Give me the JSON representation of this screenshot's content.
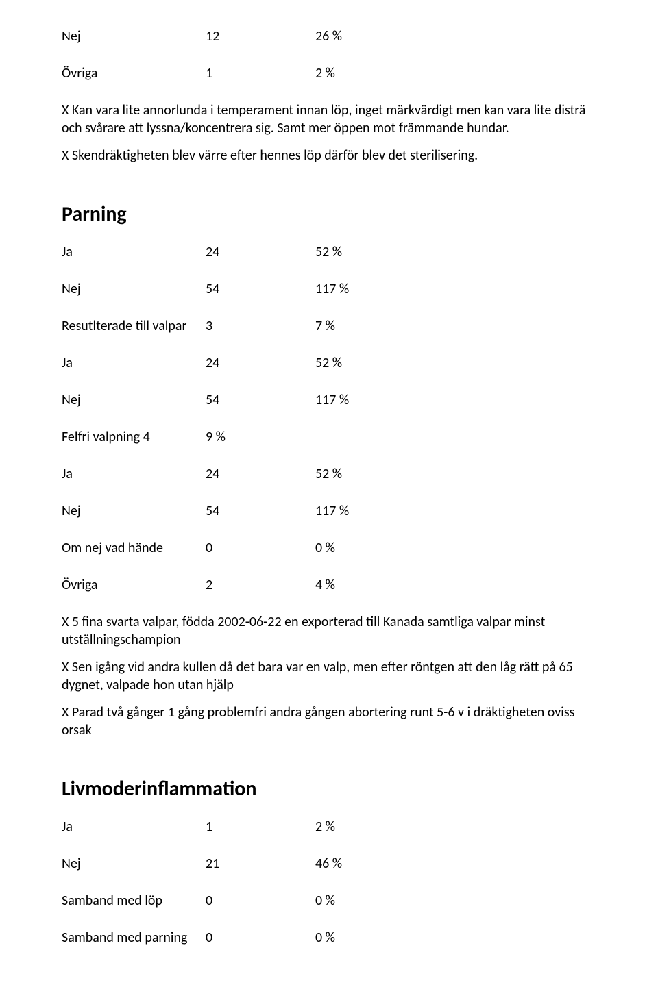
{
  "top": {
    "rows": [
      {
        "a": "Nej",
        "b": "12",
        "c": "26 %"
      },
      {
        "a": "Övriga",
        "b": "1",
        "c": "2 %"
      }
    ],
    "paragraphs": [
      "X Kan vara lite annorlunda i temperament innan löp, inget märkvärdigt men kan vara lite disträ och svårare att lyssna/koncentrera sig. Samt mer öppen mot främmande hundar.",
      "X Skendräktigheten blev värre efter hennes löp därför blev det sterilisering."
    ]
  },
  "parning": {
    "heading": "Parning",
    "rows": [
      {
        "a": "Ja",
        "b": "24",
        "c": "52 %"
      },
      {
        "a": "Nej",
        "b": "54",
        "c": "117 %"
      },
      {
        "a": "Resutlterade till valpar",
        "b": "3",
        "c": "7 %"
      },
      {
        "a": "Ja",
        "b": "24",
        "c": "52 %"
      },
      {
        "a": "Nej",
        "b": "54",
        "c": "117 %"
      },
      {
        "a": "Felfri valpning 4",
        "b": "9 %",
        "c": ""
      },
      {
        "a": "Ja",
        "b": "24",
        "c": "52 %"
      },
      {
        "a": "Nej",
        "b": "54",
        "c": "117 %"
      },
      {
        "a": "Om nej vad hände",
        "b": "0",
        "c": "0 %"
      },
      {
        "a": "Övriga",
        "b": "2",
        "c": "4 %"
      }
    ],
    "paragraphs": [
      "X 5 fina svarta valpar, födda 2002-06-22 en exporterad till Kanada samtliga valpar minst utställningschampion",
      "X Sen igång vid andra kullen då det bara var en valp, men efter röntgen att den låg rätt på 65 dygnet, valpade hon utan hjälp",
      "X Parad två gånger 1 gång problemfri andra gången abortering runt 5-6 v i dräktigheten oviss orsak"
    ]
  },
  "livmoder": {
    "heading": "Livmoderinflammation",
    "rows": [
      {
        "a": "Ja",
        "b": "1",
        "c": "2 %"
      },
      {
        "a": "Nej",
        "b": "21",
        "c": "46 %"
      },
      {
        "a": "Samband med löp",
        "b": "0",
        "c": "0 %"
      },
      {
        "a": "Samband med parning",
        "b": "0",
        "c": "0 %"
      }
    ]
  }
}
